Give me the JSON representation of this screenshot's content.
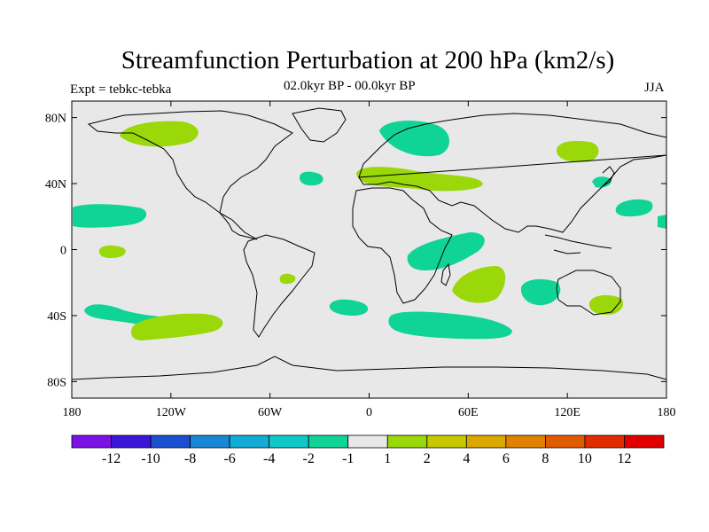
{
  "title": "Streamfunction Perturbation at 200 hPa (km2/s)",
  "experiment": "Expt = tebkc-tebka",
  "period": "02.0kyr BP - 00.0kyr BP",
  "season": "JJA",
  "axes": {
    "lat_ticks": [
      "80N",
      "40N",
      "0",
      "40S",
      "80S"
    ],
    "lon_ticks": [
      "180",
      "120W",
      "60W",
      "0",
      "60E",
      "120E",
      "180"
    ]
  },
  "colorbar": {
    "labels": [
      "-12",
      "-10",
      "-8",
      "-6",
      "-4",
      "-2",
      "-1",
      "1",
      "2",
      "4",
      "6",
      "8",
      "10",
      "12"
    ],
    "colors": [
      "#7a12e6",
      "#3a16d9",
      "#1a4fd0",
      "#1a87d6",
      "#12acd6",
      "#10c8c8",
      "#10d496",
      "#e8e8e8",
      "#9ad80a",
      "#c8c800",
      "#dca800",
      "#e08200",
      "#e05a00",
      "#e02c00",
      "#e00000"
    ]
  },
  "colors": {
    "ocean_background": "#e8e8e8",
    "positive_anomaly": "#9ad80a",
    "negative_anomaly": "#10d496",
    "coastline": "#000000"
  }
}
